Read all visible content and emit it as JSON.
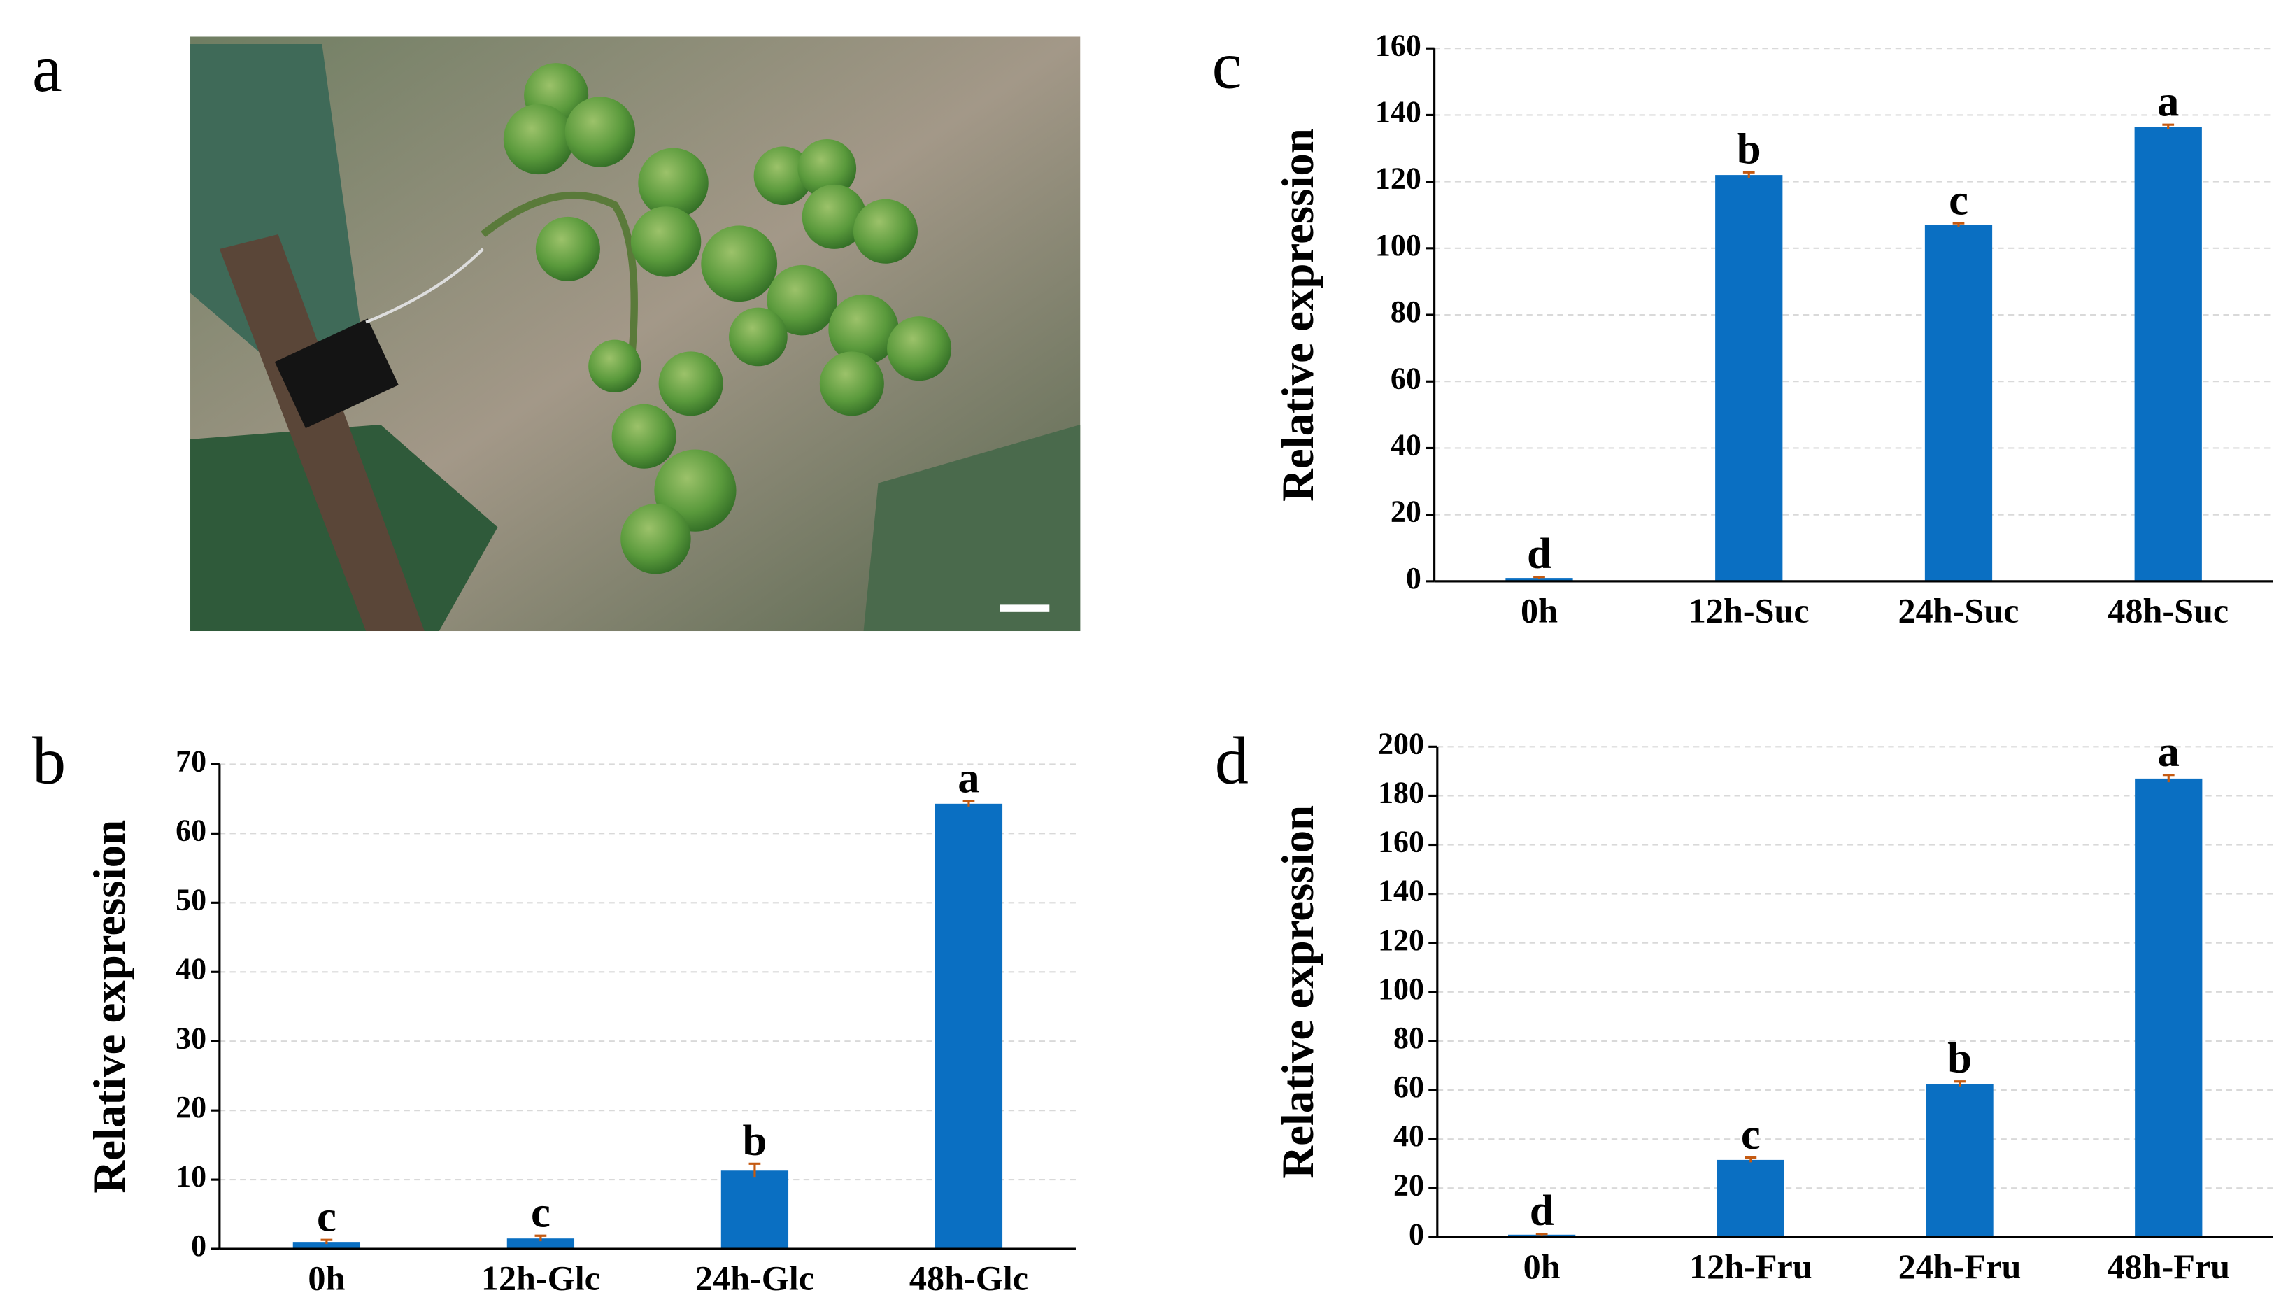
{
  "photo_panel": {
    "label": "a"
  },
  "chart_data": [
    {
      "type": "bar",
      "panel": "b",
      "ylabel": "Relative  expression",
      "categories": [
        "0h",
        "12h-Glc",
        "24h-Glc",
        "48h-Glc"
      ],
      "values": [
        1.0,
        1.5,
        11.3,
        64.3
      ],
      "errors": [
        0.3,
        0.4,
        1.0,
        0.4
      ],
      "annotations": [
        "c",
        "c",
        "b",
        "a"
      ],
      "color": "#0a6fc2",
      "ylim": [
        0,
        70
      ],
      "yticks": [
        0,
        10,
        20,
        30,
        40,
        50,
        60,
        70
      ],
      "grid": true
    },
    {
      "type": "bar",
      "panel": "c",
      "ylabel": "Relative  expression",
      "categories": [
        "0h",
        "12h-Suc",
        "24h-Suc",
        "48h-Suc"
      ],
      "values": [
        1.0,
        122,
        107,
        136.5
      ],
      "errors": [
        0.3,
        0.8,
        0.5,
        0.6
      ],
      "annotations": [
        "d",
        "b",
        "c",
        "a"
      ],
      "color": "#0a6fc2",
      "ylim": [
        0,
        160
      ],
      "yticks": [
        0,
        20,
        40,
        60,
        80,
        100,
        120,
        140,
        160
      ],
      "grid": true
    },
    {
      "type": "bar",
      "panel": "d",
      "ylabel": "Relative  expression",
      "categories": [
        "0h",
        "12h-Fru",
        "24h-Fru",
        "48h-Fru"
      ],
      "values": [
        1.0,
        31.5,
        62.5,
        187
      ],
      "errors": [
        0.3,
        1.0,
        1.0,
        1.5
      ],
      "annotations": [
        "d",
        "c",
        "b",
        "a"
      ],
      "color": "#0a6fc2",
      "ylim": [
        0,
        200
      ],
      "yticks": [
        0,
        20,
        40,
        60,
        80,
        100,
        120,
        140,
        160,
        180,
        200
      ],
      "grid": true
    }
  ]
}
